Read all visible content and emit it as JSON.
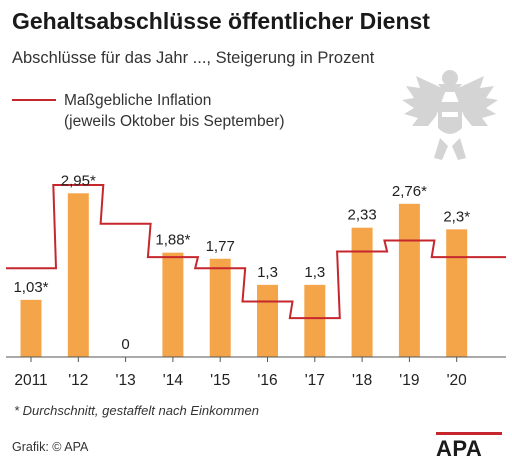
{
  "title": "Gehaltsabschlüsse öffentlicher Dienst",
  "subtitle": "Abschlüsse für das Jahr ..., Steigerung in Prozent",
  "legend": {
    "label_line1": "Maßgebliche Inflation",
    "label_line2": "(jeweils Oktober bis September)"
  },
  "footnote": "* Durchschnitt, gestaffelt nach Einkommen",
  "source": "Grafik: © APA",
  "logo_text": "APA",
  "colors": {
    "bar": "#f4a54a",
    "inflation_line": "#c5272d",
    "logo_accent": "#c5272d"
  },
  "chart_data": {
    "type": "bar",
    "categories": [
      "2011",
      "'12",
      "'13",
      "'14",
      "'15",
      "'16",
      "'17",
      "'18",
      "'19",
      "'20"
    ],
    "series": [
      {
        "name": "Gehaltsabschlüsse",
        "values": [
          1.03,
          2.95,
          0,
          1.88,
          1.77,
          1.3,
          1.3,
          2.33,
          2.76,
          2.3
        ],
        "labels": [
          "1,03*",
          "2,95*",
          "0",
          "1,88*",
          "1,77",
          "1,3",
          "1,3",
          "2,33",
          "2,76*",
          "2,3*"
        ]
      },
      {
        "name": "Maßgebliche Inflation (jeweils Oktober bis September)",
        "type": "step",
        "values": [
          1.6,
          3.1,
          2.4,
          1.8,
          1.6,
          1.0,
          0.7,
          1.9,
          2.1,
          1.8
        ]
      }
    ],
    "ylim": [
      0,
      3.5
    ],
    "grid": false,
    "legend_position": "top-left"
  }
}
